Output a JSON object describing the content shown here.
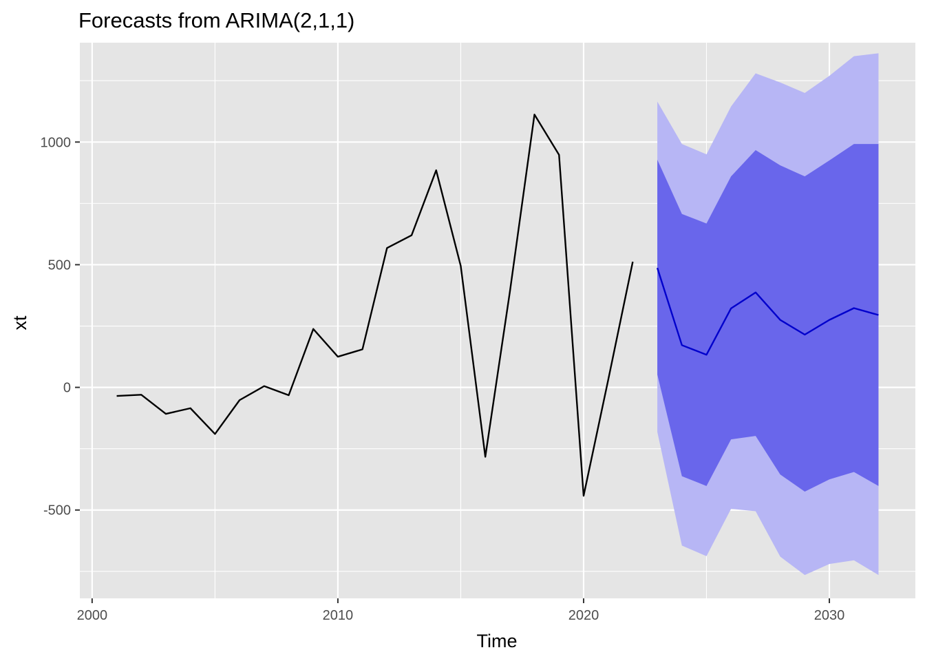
{
  "chart_data": {
    "type": "line",
    "title": "Forecasts from ARIMA(2,1,1)",
    "xlabel": "Time",
    "ylabel": "xt",
    "xlim": [
      1999.5,
      2033.5
    ],
    "ylim": [
      -860,
      1405
    ],
    "x_ticks": [
      2000,
      2010,
      2020,
      2030
    ],
    "x_tick_labels": [
      "2000",
      "2010",
      "2020",
      "2030"
    ],
    "y_ticks": [
      -500,
      0,
      500,
      1000
    ],
    "y_tick_labels": [
      "-500",
      "0",
      "500",
      "1000"
    ],
    "grid": true,
    "legend": "none",
    "colors": {
      "panel": "#e5e5e5",
      "grid": "#ffffff",
      "observed": "#000000",
      "forecast": "#0000cc",
      "interval_80": "#6966eb",
      "interval_95": "#b7b6f5"
    },
    "observed": {
      "x": [
        2001,
        2002,
        2003,
        2004,
        2005,
        2006,
        2007,
        2008,
        2009,
        2010,
        2011,
        2012,
        2013,
        2014,
        2015,
        2016,
        2017,
        2018,
        2019,
        2020,
        2021,
        2022
      ],
      "y": [
        -35,
        -30,
        -108,
        -85,
        -190,
        -52,
        5,
        -32,
        238,
        125,
        155,
        568,
        620,
        885,
        495,
        -283,
        390,
        1112,
        948,
        -442,
        30,
        512
      ]
    },
    "forecast": {
      "x": [
        2023,
        2024,
        2025,
        2026,
        2027,
        2028,
        2029,
        2030,
        2031,
        2032
      ],
      "mean": [
        487,
        172,
        133,
        322,
        387,
        275,
        215,
        275,
        323,
        295
      ],
      "lo80": [
        52,
        -362,
        -402,
        -212,
        -198,
        -355,
        -425,
        -375,
        -345,
        -402
      ],
      "hi80": [
        928,
        707,
        668,
        860,
        967,
        905,
        860,
        925,
        992,
        992
      ],
      "lo95": [
        -182,
        -645,
        -688,
        -495,
        -505,
        -690,
        -765,
        -720,
        -705,
        -765
      ],
      "hi95": [
        1165,
        992,
        950,
        1145,
        1280,
        1243,
        1200,
        1270,
        1350,
        1362
      ]
    }
  }
}
